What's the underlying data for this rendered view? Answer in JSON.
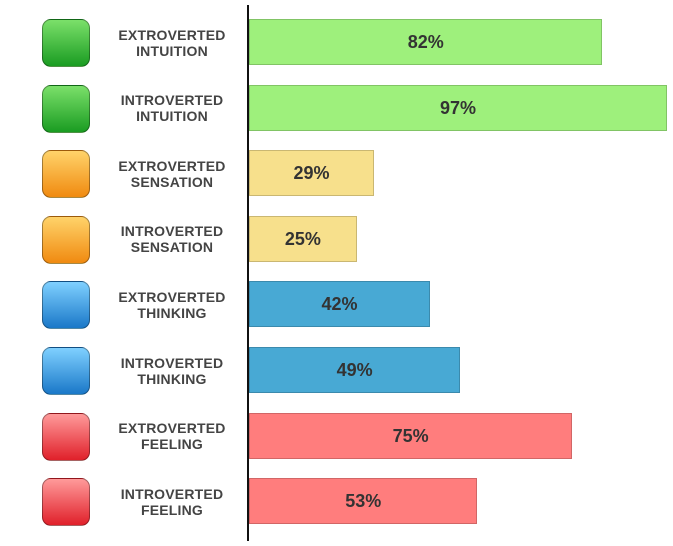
{
  "chart_data": {
    "type": "bar",
    "orientation": "horizontal",
    "categories": [
      "EXTROVERTED INTUITION",
      "INTROVERTED INTUITION",
      "EXTROVERTED SENSATION",
      "INTROVERTED SENSATION",
      "EXTROVERTED THINKING",
      "INTROVERTED THINKING",
      "EXTROVERTED FEELING",
      "INTROVERTED FEELING"
    ],
    "values": [
      82,
      97,
      29,
      25,
      42,
      49,
      75,
      53
    ],
    "value_labels": [
      "82%",
      "97%",
      "29%",
      "25%",
      "42%",
      "49%",
      "75%",
      "53%"
    ],
    "colors": [
      "#9ef07c",
      "#9ef07c",
      "#f7e08c",
      "#f7e08c",
      "#48a9d4",
      "#48a9d4",
      "#ff7d7d",
      "#ff7d7d"
    ]
  }
}
